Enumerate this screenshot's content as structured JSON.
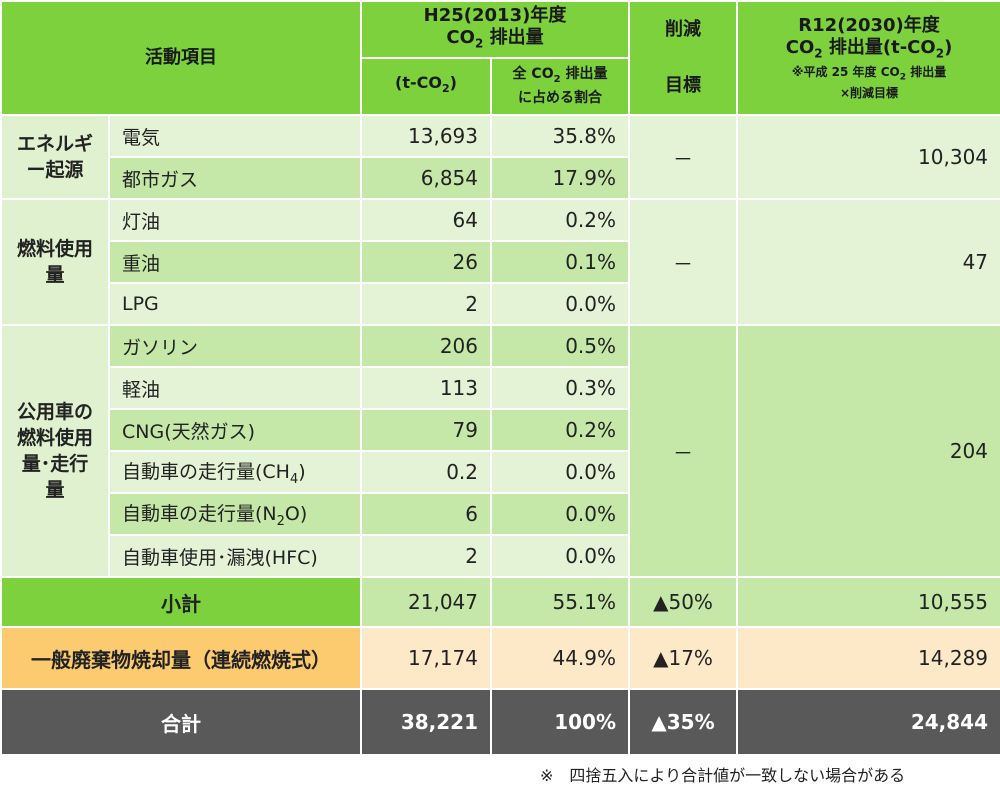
{
  "header": {
    "activity": "活動項目",
    "h25_title_1": "H25(2013)年度",
    "h25_title_2": "CO",
    "h25_title_2_sub": "2",
    "h25_title_2_rest": " 排出量",
    "h25_unit": "(t-CO",
    "h25_unit_sub": "2",
    "h25_unit_rest": ")",
    "share_1": "全 CO",
    "share_1_sub": "2",
    "share_1_rest": " 排出量",
    "share_2": "に占める割合",
    "reduction_1": "削減",
    "reduction_2": "目標",
    "r12_title_1": "R12(2030)年度",
    "r12_title_2": "CO",
    "r12_title_2_sub": "2",
    "r12_title_2_rest": " 排出量(t-CO",
    "r12_title_2_sub2": "2",
    "r12_title_2_end": ")",
    "r12_note_1": "※平成 25 年度 CO",
    "r12_note_1_sub": "2",
    "r12_note_1_rest": " 排出量",
    "r12_note_2": "×削減目標"
  },
  "groups": {
    "energy": "エネルギー起源",
    "fuel": "燃料使用量",
    "vehicle": "公用車の燃料使用量･走行量"
  },
  "rows": [
    {
      "label": "電気",
      "h25": "13,693",
      "share": "35.8%"
    },
    {
      "label": "都市ガス",
      "h25": "6,854",
      "share": "17.9%"
    },
    {
      "label": "灯油",
      "h25": "64",
      "share": "0.2%"
    },
    {
      "label": "重油",
      "h25": "26",
      "share": "0.1%"
    },
    {
      "label": "LPG",
      "h25": "2",
      "share": "0.0%"
    },
    {
      "label": "ガソリン",
      "h25": "206",
      "share": "0.5%"
    },
    {
      "label": "軽油",
      "h25": "113",
      "share": "0.3%"
    },
    {
      "label": "CNG(天然ガス)",
      "h25": "79",
      "share": "0.2%"
    },
    {
      "label": "自動車の走行量(CH",
      "label_sub": "4",
      "label_end": ")",
      "h25": "0.2",
      "share": "0.0%"
    },
    {
      "label": "自動車の走行量(N",
      "label_sub": "2",
      "label_end": "O)",
      "h25": "6",
      "share": "0.0%"
    },
    {
      "label": "自動車使用･漏洩(HFC)",
      "h25": "2",
      "share": "0.0%"
    }
  ],
  "group_values": {
    "energy_reduction": "－",
    "energy_r12": "10,304",
    "fuel_reduction": "－",
    "fuel_r12": "47",
    "vehicle_reduction": "－",
    "vehicle_r12": "204"
  },
  "subtotal": {
    "label": "小計",
    "h25": "21,047",
    "share": "55.1%",
    "reduction": "▲50%",
    "r12": "10,555"
  },
  "general_waste": {
    "label": "一般廃棄物焼却量（連続燃焼式）",
    "h25": "17,174",
    "share": "44.9%",
    "reduction": "▲17%",
    "r12": "14,289"
  },
  "total": {
    "label": "合計",
    "h25": "38,221",
    "share": "100%",
    "reduction": "▲35%",
    "r12": "24,844"
  },
  "footnote": "※　四捨五入により合計値が一致しない場合がある"
}
